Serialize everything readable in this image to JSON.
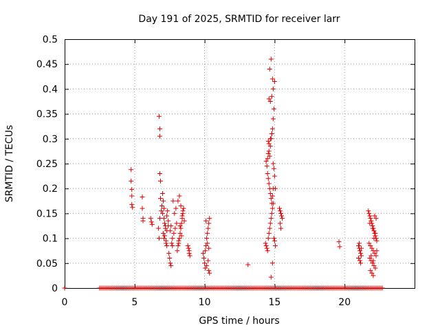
{
  "chart_data": {
    "type": "scatter",
    "title": "Day 191 of 2025, SRMTID for receiver larr",
    "xlabel": "GPS time / hours",
    "ylabel": "SRMTID / TECUs",
    "xlim": [
      0,
      25
    ],
    "ylim": [
      0,
      0.5
    ],
    "xticks": [
      0,
      5,
      10,
      15,
      20
    ],
    "yticks": [
      0,
      0.05,
      0.1,
      0.15,
      0.2,
      0.25,
      0.3,
      0.35,
      0.4,
      0.45,
      0.5
    ],
    "xtick_labels": [
      "0",
      "5",
      "10",
      "15",
      "20"
    ],
    "ytick_labels": [
      "0",
      "0.05",
      "0.1",
      "0.15",
      "0.2",
      "0.25",
      "0.3",
      "0.35",
      "0.4",
      "0.45",
      "0.5"
    ],
    "grid": true,
    "legend": "none",
    "marker": "+",
    "color": "#e00000",
    "series": [
      {
        "name": "SRMTID",
        "x": [
          0.0,
          4.75,
          4.75,
          4.8,
          4.8,
          4.8,
          4.85,
          5.55,
          5.55,
          5.6,
          5.6,
          6.15,
          6.2,
          6.25,
          6.75,
          6.8,
          6.8,
          6.8,
          6.85,
          6.75,
          6.7,
          6.8,
          6.9,
          6.95,
          6.85,
          7.0,
          7.05,
          7.1,
          7.0,
          7.1,
          7.15,
          7.2,
          7.05,
          7.1,
          7.25,
          7.3,
          7.2,
          7.3,
          7.35,
          7.4,
          7.15,
          7.25,
          7.3,
          7.4,
          7.45,
          7.5,
          7.55,
          7.6,
          7.65,
          7.7,
          7.8,
          7.9,
          8.0,
          7.85,
          7.95,
          7.75,
          7.6,
          7.7,
          7.55,
          8.05,
          8.1,
          8.15,
          8.2,
          8.25,
          8.3,
          8.35,
          8.4,
          8.45,
          8.5,
          8.1,
          8.2,
          8.3,
          8.4,
          8.45,
          8.55,
          8.25,
          8.35,
          8.15,
          8.8,
          8.85,
          8.9,
          8.95,
          8.9,
          9.9,
          9.95,
          10.0,
          10.05,
          10.1,
          10.15,
          10.2,
          10.25,
          10.3,
          10.35,
          10.1,
          10.2,
          10.3,
          10.25,
          10.15,
          10.05,
          10.3,
          10.35,
          13.1,
          14.35,
          14.4,
          14.45,
          14.5,
          14.55,
          14.6,
          14.65,
          14.7,
          14.75,
          14.8,
          14.85,
          14.9,
          14.95,
          15.0,
          15.05,
          14.5,
          14.55,
          14.6,
          14.65,
          14.7,
          14.75,
          14.8,
          14.85,
          14.9,
          14.55,
          14.6,
          14.7,
          14.75,
          14.8,
          14.85,
          14.9,
          14.95,
          14.6,
          14.7,
          14.8,
          14.9,
          15.0,
          14.65,
          14.75,
          14.85,
          14.4,
          14.45,
          14.5,
          14.55,
          14.6,
          14.65,
          14.7,
          14.8,
          14.9,
          14.95,
          15.0,
          15.05,
          14.85,
          14.75,
          15.35,
          15.4,
          15.45,
          15.5,
          15.55,
          15.4,
          15.45,
          19.6,
          19.65,
          21.0,
          21.05,
          21.1,
          21.15,
          21.2,
          21.0,
          21.1,
          21.15,
          21.2,
          21.05,
          21.7,
          21.75,
          21.8,
          21.85,
          21.9,
          21.95,
          22.0,
          22.05,
          22.1,
          22.15,
          22.2,
          22.25,
          22.3,
          21.75,
          21.85,
          21.95,
          22.05,
          22.15,
          22.25,
          21.8,
          21.9,
          22.0,
          22.1,
          22.2,
          21.85,
          21.95,
          22.05,
          22.15,
          22.25,
          21.8,
          22.0,
          22.2,
          22.1,
          22.3,
          21.9,
          22.05
        ],
        "y": [
          0.0,
          0.238,
          0.215,
          0.198,
          0.185,
          0.168,
          0.162,
          0.183,
          0.16,
          0.14,
          0.135,
          0.14,
          0.133,
          0.128,
          0.345,
          0.32,
          0.305,
          0.23,
          0.215,
          0.1,
          0.12,
          0.14,
          0.155,
          0.165,
          0.18,
          0.19,
          0.175,
          0.16,
          0.15,
          0.14,
          0.13,
          0.12,
          0.11,
          0.1,
          0.09,
          0.115,
          0.125,
          0.145,
          0.155,
          0.125,
          0.105,
          0.095,
          0.085,
          0.135,
          0.07,
          0.06,
          0.05,
          0.045,
          0.09,
          0.1,
          0.11,
          0.12,
          0.13,
          0.15,
          0.16,
          0.175,
          0.125,
          0.085,
          0.115,
          0.075,
          0.085,
          0.095,
          0.1,
          0.11,
          0.12,
          0.13,
          0.14,
          0.15,
          0.16,
          0.175,
          0.185,
          0.165,
          0.145,
          0.155,
          0.135,
          0.125,
          0.105,
          0.09,
          0.085,
          0.08,
          0.07,
          0.065,
          0.075,
          0.07,
          0.06,
          0.05,
          0.075,
          0.085,
          0.1,
          0.11,
          0.12,
          0.13,
          0.14,
          0.135,
          0.09,
          0.08,
          0.055,
          0.045,
          0.04,
          0.035,
          0.03,
          0.047,
          0.09,
          0.085,
          0.08,
          0.075,
          0.1,
          0.11,
          0.12,
          0.13,
          0.14,
          0.15,
          0.16,
          0.17,
          0.1,
          0.095,
          0.085,
          0.23,
          0.22,
          0.21,
          0.2,
          0.19,
          0.18,
          0.17,
          0.185,
          0.2,
          0.295,
          0.29,
          0.285,
          0.3,
          0.31,
          0.32,
          0.34,
          0.36,
          0.38,
          0.375,
          0.385,
          0.4,
          0.415,
          0.44,
          0.46,
          0.42,
          0.255,
          0.245,
          0.26,
          0.27,
          0.275,
          0.265,
          0.3,
          0.31,
          0.25,
          0.24,
          0.225,
          0.2,
          0.05,
          0.022,
          0.16,
          0.155,
          0.15,
          0.145,
          0.14,
          0.13,
          0.12,
          0.093,
          0.083,
          0.085,
          0.08,
          0.075,
          0.07,
          0.065,
          0.06,
          0.055,
          0.05,
          0.08,
          0.09,
          0.155,
          0.15,
          0.145,
          0.14,
          0.135,
          0.13,
          0.125,
          0.12,
          0.115,
          0.11,
          0.105,
          0.1,
          0.095,
          0.09,
          0.085,
          0.08,
          0.075,
          0.07,
          0.065,
          0.06,
          0.055,
          0.05,
          0.045,
          0.04,
          0.035,
          0.03,
          0.025,
          0.145,
          0.14,
          0.13,
          0.12,
          0.11,
          0.1,
          0.075,
          0.065,
          0.055
        ],
        "zero_baseline_x": [
          2.5,
          2.6,
          2.7,
          2.8,
          2.9,
          3.0,
          3.1,
          3.2,
          3.3,
          3.4,
          3.5,
          3.6,
          3.7,
          3.8,
          3.9,
          4.0,
          4.1,
          4.2,
          4.3,
          4.4,
          4.5,
          4.6,
          4.7,
          4.8,
          4.9,
          5.0,
          5.1,
          5.2,
          5.3,
          5.4,
          5.5,
          5.6,
          5.7,
          5.8,
          5.9,
          6.0,
          6.1,
          6.2,
          6.3,
          6.4,
          6.5,
          6.6,
          6.7,
          6.8,
          6.9,
          7.0,
          7.1,
          7.2,
          7.3,
          7.4,
          7.5,
          7.6,
          7.7,
          7.8,
          7.9,
          8.0,
          8.1,
          8.2,
          8.3,
          8.4,
          8.5,
          8.6,
          8.7,
          8.8,
          8.9,
          9.0,
          9.1,
          9.2,
          9.3,
          9.4,
          9.5,
          9.6,
          9.7,
          9.8,
          9.9,
          10.0,
          10.1,
          10.2,
          10.3,
          10.4,
          10.5,
          10.6,
          10.7,
          10.8,
          10.9,
          11.0,
          11.1,
          11.2,
          11.3,
          11.4,
          11.5,
          11.6,
          11.7,
          11.8,
          11.9,
          12.0,
          12.1,
          12.2,
          12.3,
          12.4,
          12.5,
          12.6,
          12.7,
          12.8,
          12.9,
          13.0,
          13.1,
          13.2,
          13.3,
          13.4,
          13.5,
          13.6,
          13.7,
          13.8,
          13.9,
          14.0,
          14.1,
          14.2,
          14.3,
          14.4,
          14.5,
          14.6,
          14.7,
          14.8,
          14.9,
          15.0,
          15.1,
          15.2,
          15.3,
          15.4,
          15.5,
          15.6,
          15.7,
          15.8,
          15.9,
          16.0,
          16.1,
          16.2,
          16.3,
          16.4,
          16.5,
          16.6,
          16.7,
          16.8,
          16.9,
          17.0,
          17.1,
          17.2,
          17.3,
          17.4,
          17.5,
          17.6,
          17.7,
          17.8,
          17.9,
          18.0,
          18.1,
          18.2,
          18.3,
          18.4,
          18.5,
          18.6,
          18.7,
          18.8,
          18.9,
          19.0,
          19.1,
          19.2,
          19.3,
          19.4,
          19.5,
          19.6,
          19.7,
          19.8,
          19.9,
          20.0,
          20.1,
          20.2,
          20.3,
          20.4,
          20.5,
          20.6,
          20.7,
          20.8,
          20.9,
          21.0,
          21.1,
          21.2,
          21.3,
          21.4,
          21.5,
          21.6,
          21.7,
          21.8,
          21.9,
          22.0,
          22.1,
          22.2,
          22.3,
          22.4,
          22.5,
          22.6,
          22.7
        ]
      }
    ]
  }
}
